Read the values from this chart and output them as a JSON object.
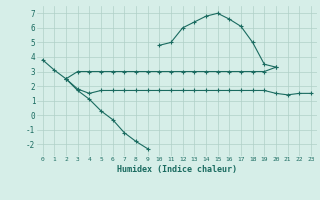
{
  "xlabel": "Humidex (Indice chaleur)",
  "bg_color": "#d6eee8",
  "grid_color": "#b0d0c8",
  "line_color": "#1a6b60",
  "line1_x": [
    10,
    11,
    12,
    13,
    14,
    15,
    16,
    17,
    18,
    19,
    20
  ],
  "line1_y": [
    4.8,
    5.0,
    6.0,
    6.4,
    6.8,
    7.0,
    6.6,
    6.1,
    5.0,
    3.5,
    3.3
  ],
  "line2_x": [
    0,
    1,
    2,
    3,
    4,
    5,
    6,
    7,
    8,
    9,
    10,
    11,
    12,
    13,
    14,
    15,
    16,
    17,
    18,
    19,
    20
  ],
  "line2_y": [
    3.8,
    3.1,
    2.5,
    3.0,
    3.0,
    3.0,
    3.0,
    3.0,
    3.0,
    3.0,
    3.0,
    3.0,
    3.0,
    3.0,
    3.0,
    3.0,
    3.0,
    3.0,
    3.0,
    3.0,
    3.3
  ],
  "line3_x": [
    2,
    3,
    4,
    5,
    6,
    7,
    8,
    9,
    10,
    11,
    12,
    13,
    14,
    15,
    16,
    17,
    18,
    19,
    20,
    21,
    22,
    23
  ],
  "line3_y": [
    2.5,
    1.8,
    1.5,
    1.7,
    1.7,
    1.7,
    1.7,
    1.7,
    1.7,
    1.7,
    1.7,
    1.7,
    1.7,
    1.7,
    1.7,
    1.7,
    1.7,
    1.7,
    1.5,
    1.4,
    1.5,
    1.5
  ],
  "line4_x": [
    2,
    3,
    4,
    5,
    6,
    7,
    8,
    9
  ],
  "line4_y": [
    2.5,
    1.7,
    1.1,
    0.3,
    -0.3,
    -1.2,
    -1.8,
    -2.3
  ],
  "xlim": [
    -0.5,
    23.5
  ],
  "ylim": [
    -2.8,
    7.5
  ],
  "yticks": [
    -2,
    -1,
    0,
    1,
    2,
    3,
    4,
    5,
    6,
    7
  ],
  "xticks": [
    0,
    1,
    2,
    3,
    4,
    5,
    6,
    7,
    8,
    9,
    10,
    11,
    12,
    13,
    14,
    15,
    16,
    17,
    18,
    19,
    20,
    21,
    22,
    23
  ]
}
